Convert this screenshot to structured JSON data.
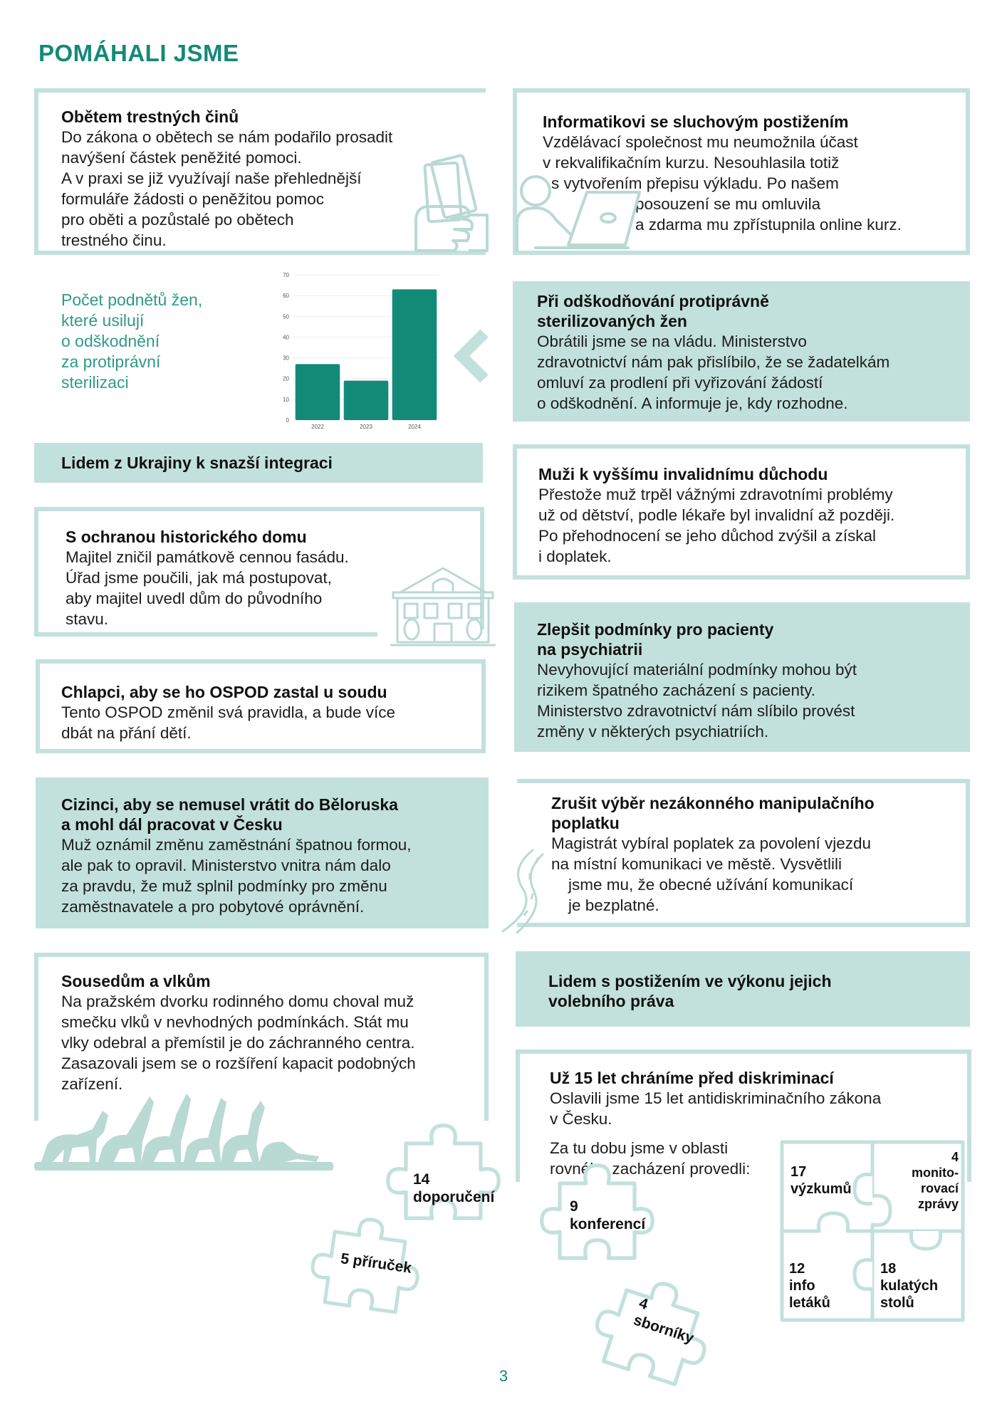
{
  "page": {
    "title": "POMÁHALI JSME",
    "page_number": "3"
  },
  "cards": {
    "victims": {
      "title": "Obětem trestných činů",
      "text": "Do zákona o obětech se nám podařilo prosadit\nnavýšení částek peněžité pomoci.\nA v praxi se již využívají naše přehlednější\nformuláře žádosti o peněžitou pomoc\npro oběti a pozůstalé po obětech\ntrestného činu."
    },
    "it_worker": {
      "title": "Informatikovi se sluchovým postižením",
      "text1": "Vzdělávací společnost mu neumožnila účast\nv rekvalifikačním kurzu. Nesouhlasila totiž",
      "text2": "s vytvořením přepisu výkladu. Po našem",
      "text3": "posouzení se mu omluvila\na zdarma mu zpřístupnila online kurz."
    },
    "sterilization": {
      "title": "Při odškodňování protiprávně\nsterilizovaných žen",
      "text": "Obrátili jsme se na vládu. Ministerstvo\nzdravotnictví nám pak přislíbilo, že se žadatelkám\nomluví za prodlení při vyřizování žádostí\no odškodnění. A informuje je, kdy rozhodne."
    },
    "ukraine": {
      "title": "Lidem z Ukrajiny k snazší integraci"
    },
    "disability_pension": {
      "title": "Muži k vyššímu invalidnímu důchodu",
      "text": "Přestože muž trpěl vážnými zdravotními problémy\nuž od dětství, podle lékaře byl invalidní až později.\nPo přehodnocení se jeho důchod zvýšil a získal\ni doplatek."
    },
    "historic_house": {
      "title": "S ochranou historického domu",
      "text": "Majitel zničil památkově cennou fasádu.\nÚřad jsme poučili, jak má postupovat,\naby majitel uvedl dům do původního\nstavu."
    },
    "psychiatry": {
      "title": "Zlepšit podmínky pro pacienty\nna psychiatrii",
      "text": "Nevyhovující materiální podmínky mohou být\nrizikem špatného zacházení s pacienty.\nMinisterstvo zdravotnictví nám slíbilo provést\nzměny v některých psychiatriích."
    },
    "ospod": {
      "title": "Chlapci, aby se ho OSPOD zastal u soudu",
      "text": "Tento OSPOD změnil svá pravidla, a bude více\ndbát na přání dětí."
    },
    "foreigner": {
      "title": "Cizinci, aby se nemusel vrátit do Běloruska\na mohl dál pracovat v Česku",
      "text": "Muž oznámil změnu zaměstnání špatnou formou,\nale pak to opravil. Ministerstvo vnitra nám dalo\nza pravdu, že muž splnil podmínky pro změnu\nzaměstnavatele a pro pobytové oprávnění."
    },
    "fee": {
      "title": "Zrušit výběr nezákonného manipulačního\npoplatku",
      "text1": "Magistrát vybíral poplatek za povolení vjezdu\nna místní komunikaci ve městě. Vysvětlili",
      "text2": "jsme mu, že obecné užívání komunikací\nje bezplatné."
    },
    "wolves": {
      "title": "Sousedům a vlkům",
      "text": "Na pražském dvorku rodinného domu choval muž\nsmečku vlků v nevhodných podmínkách. Stát mu\nvlky odebral a přemístil je do záchranného centra.\nZasazovali jsem se o rozšíření kapacit podobných\nzařízení."
    },
    "voting": {
      "title": "Lidem s postižením ve výkonu jejich\nvolebního práva"
    },
    "antidiscrimination": {
      "title": "Už 15 let chráníme před diskriminací",
      "text": "Oslavili jsme 15 let antidiskriminačního zákona\nv Česku.",
      "text2": "Za tu dobu jsme v oblasti\nrovného zacházení provedli:"
    }
  },
  "chart_caption": "Počet podnětů žen,\nkteré usilují\no odškodnění\nza protiprávní\nsterilizaci",
  "chart_data": {
    "type": "bar",
    "categories": [
      "2022",
      "2023",
      "2024"
    ],
    "values": [
      27,
      19,
      63
    ],
    "ylim": [
      0,
      70
    ],
    "yticks": [
      0,
      10,
      20,
      30,
      40,
      50,
      60,
      70
    ],
    "xlabel": "",
    "ylabel": "",
    "grid": true,
    "bar_color": "#138a78"
  },
  "puzzles": {
    "recommendations": "14\ndoporučení",
    "handbooks": "5 příruček",
    "conferences": "9\nkonferencí",
    "proceedings": "4\nsborníky",
    "research": "17\nvýzkumů",
    "monitoring": "4\nmonito-\nrovací\nzprávy",
    "leaflets": "12\ninfo\nletáků",
    "roundtables": "18\nkulatých\nstolů"
  },
  "colors": {
    "accent": "#138a78",
    "light": "#c3e1dc",
    "icon": "#b9d9d3"
  }
}
